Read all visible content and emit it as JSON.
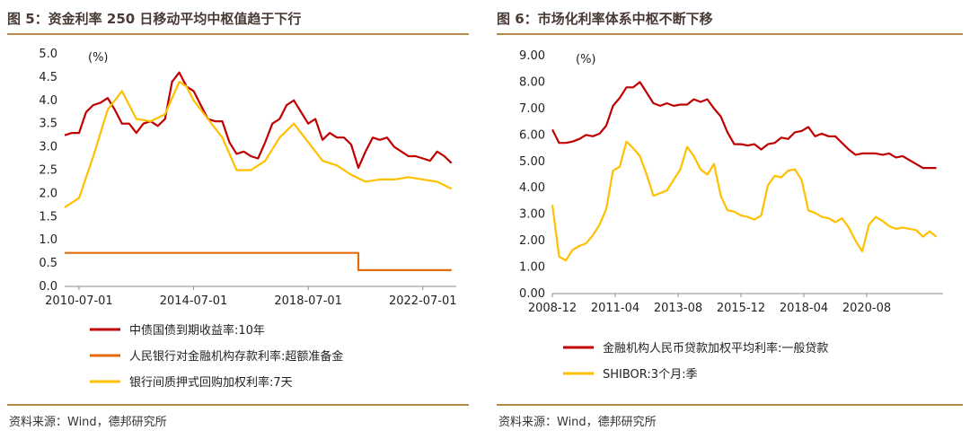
{
  "brand": {
    "accent": "#b8894a",
    "title_color": "#4a3a35"
  },
  "left": {
    "title": "图 5：资金利率 250 日移动平均中枢值趋于下行",
    "source": "资料来源：Wind，德邦研究所",
    "chart_data": {
      "type": "line",
      "unit_label": "(%)",
      "ylim": [
        0,
        5.0
      ],
      "ytick_labels": [
        "0.0",
        "0.5",
        "1.0",
        "1.5",
        "2.0",
        "2.5",
        "3.0",
        "3.5",
        "4.0",
        "4.5",
        "5.0"
      ],
      "xlim": [
        "2010-01",
        "2023-09"
      ],
      "xtick_labels": [
        "2010-07-01",
        "2014-07-01",
        "2018-07-01",
        "2022-07-01"
      ],
      "xtick_positions": [
        "2010-07",
        "2014-07",
        "2018-07",
        "2022-07"
      ],
      "series": [
        {
          "name": "中债国债到期收益率:10年",
          "color": "#c00000",
          "x": [
            "2010-01",
            "2010-04",
            "2010-07",
            "2010-10",
            "2011-01",
            "2011-04",
            "2011-07",
            "2011-10",
            "2012-01",
            "2012-04",
            "2012-07",
            "2012-10",
            "2013-01",
            "2013-04",
            "2013-07",
            "2013-10",
            "2014-01",
            "2014-04",
            "2014-07",
            "2014-10",
            "2015-01",
            "2015-04",
            "2015-07",
            "2015-10",
            "2016-01",
            "2016-04",
            "2016-07",
            "2016-10",
            "2017-01",
            "2017-04",
            "2017-07",
            "2017-10",
            "2018-01",
            "2018-04",
            "2018-07",
            "2018-10",
            "2019-01",
            "2019-04",
            "2019-07",
            "2019-10",
            "2020-01",
            "2020-04",
            "2020-07",
            "2020-10",
            "2021-01",
            "2021-04",
            "2021-07",
            "2021-10",
            "2022-01",
            "2022-04",
            "2022-07",
            "2022-10",
            "2023-01",
            "2023-04",
            "2023-07"
          ],
          "y": [
            3.25,
            3.3,
            3.3,
            3.75,
            3.9,
            3.95,
            4.05,
            3.8,
            3.5,
            3.5,
            3.3,
            3.5,
            3.55,
            3.45,
            3.6,
            4.4,
            4.6,
            4.3,
            4.2,
            3.9,
            3.6,
            3.55,
            3.55,
            3.1,
            2.85,
            2.9,
            2.8,
            2.75,
            3.1,
            3.5,
            3.6,
            3.9,
            4.0,
            3.75,
            3.5,
            3.6,
            3.15,
            3.3,
            3.2,
            3.2,
            3.05,
            2.55,
            2.9,
            3.2,
            3.15,
            3.2,
            3.0,
            2.9,
            2.8,
            2.8,
            2.75,
            2.7,
            2.9,
            2.8,
            2.65
          ]
        },
        {
          "name": "人民银行对金融机构存款利率:超额准备金",
          "color": "#e36c09",
          "x": [
            "2010-01",
            "2020-04",
            "2020-04",
            "2023-07"
          ],
          "y": [
            0.72,
            0.72,
            0.35,
            0.35
          ]
        },
        {
          "name": "银行间质押式回购加权利率:7天",
          "color": "#ffc000",
          "x": [
            "2010-01",
            "2010-07",
            "2011-01",
            "2011-07",
            "2012-01",
            "2012-07",
            "2013-01",
            "2013-07",
            "2014-01",
            "2014-04",
            "2014-07",
            "2015-01",
            "2015-07",
            "2016-01",
            "2016-07",
            "2017-01",
            "2017-07",
            "2018-01",
            "2018-07",
            "2019-01",
            "2019-07",
            "2020-01",
            "2020-07",
            "2021-01",
            "2021-07",
            "2022-01",
            "2022-07",
            "2023-01",
            "2023-07"
          ],
          "y": [
            1.7,
            1.9,
            2.8,
            3.8,
            4.2,
            3.6,
            3.55,
            3.7,
            4.4,
            4.3,
            4.0,
            3.6,
            3.2,
            2.5,
            2.5,
            2.7,
            3.2,
            3.5,
            3.1,
            2.7,
            2.6,
            2.4,
            2.25,
            2.3,
            2.3,
            2.35,
            2.3,
            2.25,
            2.1
          ]
        }
      ]
    }
  },
  "right": {
    "title": "图 6：市场化利率体系中枢不断下移",
    "source": "资料来源：Wind，德邦研究所",
    "chart_data": {
      "type": "line",
      "unit_label": "(%)",
      "ylim": [
        0,
        9.0
      ],
      "ytick_labels": [
        "0.00",
        "1.00",
        "2.00",
        "3.00",
        "4.00",
        "5.00",
        "6.00",
        "7.00",
        "8.00",
        "9.00"
      ],
      "xlim": [
        "2008-12",
        "2023-06"
      ],
      "xtick_labels": [
        "2008-12",
        "2011-04",
        "2013-08",
        "2015-12",
        "2018-04",
        "2020-08"
      ],
      "xtick_positions": [
        "2008-12",
        "2011-04",
        "2013-08",
        "2015-12",
        "2018-04",
        "2020-08"
      ],
      "series": [
        {
          "name": "金融机构人民币贷款加权平均利率:一般贷款",
          "color": "#c00000",
          "x": [
            "2008-12",
            "2009-03",
            "2009-06",
            "2009-09",
            "2009-12",
            "2010-03",
            "2010-06",
            "2010-09",
            "2010-12",
            "2011-03",
            "2011-06",
            "2011-09",
            "2011-12",
            "2012-03",
            "2012-06",
            "2012-09",
            "2012-12",
            "2013-03",
            "2013-06",
            "2013-09",
            "2013-12",
            "2014-03",
            "2014-06",
            "2014-09",
            "2014-12",
            "2015-03",
            "2015-06",
            "2015-09",
            "2015-12",
            "2016-03",
            "2016-06",
            "2016-09",
            "2016-12",
            "2017-03",
            "2017-06",
            "2017-09",
            "2017-12",
            "2018-03",
            "2018-06",
            "2018-09",
            "2018-12",
            "2019-03",
            "2019-06",
            "2019-09",
            "2019-12",
            "2020-03",
            "2020-06",
            "2020-09",
            "2020-12",
            "2021-03",
            "2021-06",
            "2021-09",
            "2021-12",
            "2022-03",
            "2022-06",
            "2022-09",
            "2022-12",
            "2023-03"
          ],
          "y": [
            6.2,
            5.7,
            5.7,
            5.75,
            5.85,
            6.0,
            5.95,
            6.05,
            6.35,
            7.1,
            7.4,
            7.8,
            7.8,
            8.0,
            7.6,
            7.2,
            7.1,
            7.2,
            7.1,
            7.15,
            7.15,
            7.35,
            7.25,
            7.35,
            7.0,
            6.7,
            6.1,
            5.65,
            5.65,
            5.6,
            5.65,
            5.45,
            5.65,
            5.7,
            5.9,
            5.85,
            6.1,
            6.15,
            6.3,
            5.95,
            6.05,
            5.95,
            5.95,
            5.7,
            5.45,
            5.25,
            5.3,
            5.3,
            5.3,
            5.25,
            5.3,
            5.15,
            5.2,
            5.05,
            4.9,
            4.75,
            4.75,
            4.75
          ]
        },
        {
          "name": "SHIBOR:3个月:季",
          "color": "#ffc000",
          "x": [
            "2008-12",
            "2009-03",
            "2009-06",
            "2009-09",
            "2009-12",
            "2010-03",
            "2010-06",
            "2010-09",
            "2010-12",
            "2011-03",
            "2011-06",
            "2011-09",
            "2011-12",
            "2012-03",
            "2012-06",
            "2012-09",
            "2012-12",
            "2013-03",
            "2013-06",
            "2013-09",
            "2013-12",
            "2014-03",
            "2014-06",
            "2014-09",
            "2014-12",
            "2015-03",
            "2015-06",
            "2015-09",
            "2015-12",
            "2016-03",
            "2016-06",
            "2016-09",
            "2016-12",
            "2017-03",
            "2017-06",
            "2017-09",
            "2017-12",
            "2018-03",
            "2018-06",
            "2018-09",
            "2018-12",
            "2019-03",
            "2019-06",
            "2019-09",
            "2019-12",
            "2020-03",
            "2020-06",
            "2020-09",
            "2020-12",
            "2021-03",
            "2021-06",
            "2021-09",
            "2021-12",
            "2022-03",
            "2022-06",
            "2022-09",
            "2022-12",
            "2023-03"
          ],
          "y": [
            3.35,
            1.4,
            1.25,
            1.65,
            1.8,
            1.9,
            2.2,
            2.6,
            3.2,
            4.65,
            4.8,
            5.75,
            5.5,
            5.2,
            4.5,
            3.7,
            3.8,
            3.9,
            4.3,
            4.7,
            5.55,
            5.2,
            4.7,
            4.5,
            4.9,
            3.7,
            3.15,
            3.1,
            2.95,
            2.9,
            2.8,
            2.95,
            4.1,
            4.45,
            4.4,
            4.65,
            4.7,
            4.3,
            3.15,
            3.05,
            2.9,
            2.85,
            2.7,
            2.85,
            2.5,
            2.0,
            1.6,
            2.6,
            2.9,
            2.75,
            2.55,
            2.45,
            2.5,
            2.45,
            2.4,
            2.15,
            2.35,
            2.15
          ]
        }
      ]
    }
  }
}
